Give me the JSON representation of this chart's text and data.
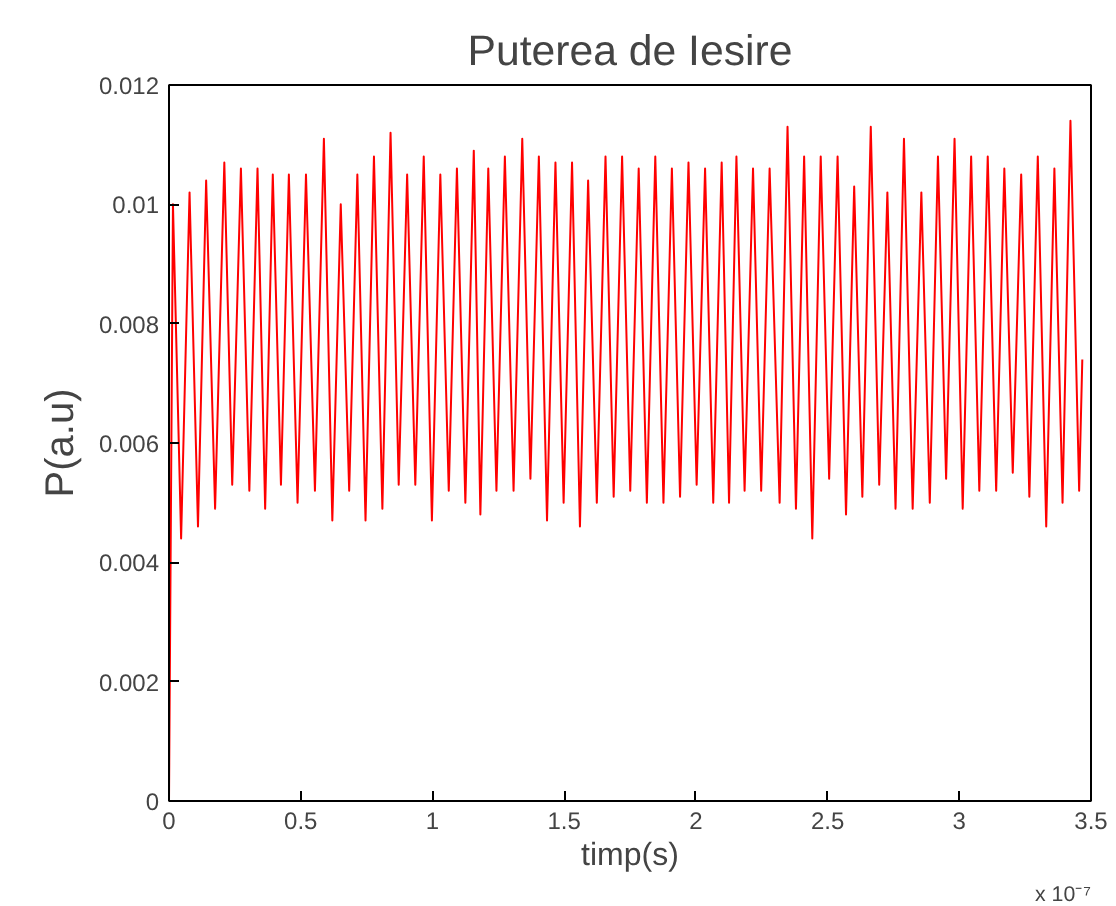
{
  "chart_data": {
    "type": "line",
    "title": "Puterea de Iesire",
    "xlabel": "timp(s)",
    "ylabel": "P(a.u)",
    "annotations": [
      "x 10⁻⁷"
    ],
    "xlim": [
      0,
      3.5
    ],
    "ylim": [
      0,
      0.012
    ],
    "xticks": [
      0,
      0.5,
      1,
      1.5,
      2,
      2.5,
      3,
      3.5
    ],
    "yticks": [
      0,
      0.002,
      0.004,
      0.006,
      0.008,
      0.01,
      0.012
    ],
    "grid": false,
    "marker": "none",
    "line_style": "solid",
    "series": [
      {
        "color": "#ff0000",
        "x": [
          0,
          0.015,
          0.046,
          0.078,
          0.11,
          0.141,
          0.175,
          0.21,
          0.24,
          0.273,
          0.305,
          0.336,
          0.365,
          0.394,
          0.425,
          0.455,
          0.488,
          0.52,
          0.554,
          0.588,
          0.62,
          0.652,
          0.684,
          0.715,
          0.746,
          0.778,
          0.81,
          0.841,
          0.872,
          0.904,
          0.935,
          0.967,
          0.998,
          1.03,
          1.062,
          1.093,
          1.125,
          1.157,
          1.182,
          1.212,
          1.243,
          1.275,
          1.308,
          1.341,
          1.372,
          1.404,
          1.435,
          1.467,
          1.498,
          1.53,
          1.56,
          1.591,
          1.624,
          1.657,
          1.688,
          1.72,
          1.751,
          1.783,
          1.814,
          1.846,
          1.877,
          1.909,
          1.94,
          1.972,
          2.003,
          2.035,
          2.066,
          2.098,
          2.126,
          2.154,
          2.185,
          2.217,
          2.248,
          2.28,
          2.318,
          2.348,
          2.38,
          2.411,
          2.442,
          2.474,
          2.506,
          2.538,
          2.57,
          2.601,
          2.632,
          2.664,
          2.696,
          2.727,
          2.758,
          2.79,
          2.823,
          2.856,
          2.888,
          2.919,
          2.95,
          2.982,
          3.013,
          3.045,
          3.076,
          3.108,
          3.14,
          3.171,
          3.203,
          3.235,
          3.266,
          3.298,
          3.33,
          3.361,
          3.392,
          3.422,
          3.455,
          3.467
        ],
        "values": [
          0,
          0.01,
          0.0044,
          0.0102,
          0.0046,
          0.0104,
          0.0049,
          0.0107,
          0.0053,
          0.0106,
          0.0052,
          0.0106,
          0.0049,
          0.0105,
          0.0053,
          0.0105,
          0.005,
          0.0105,
          0.0052,
          0.0111,
          0.0047,
          0.01,
          0.0052,
          0.0105,
          0.0047,
          0.0108,
          0.0049,
          0.0112,
          0.0053,
          0.0105,
          0.0053,
          0.0108,
          0.0047,
          0.0105,
          0.0052,
          0.0106,
          0.005,
          0.0109,
          0.0048,
          0.0106,
          0.0052,
          0.0108,
          0.0052,
          0.0111,
          0.0054,
          0.0108,
          0.0047,
          0.0107,
          0.005,
          0.0107,
          0.0046,
          0.0104,
          0.005,
          0.0108,
          0.0051,
          0.0108,
          0.0052,
          0.0106,
          0.005,
          0.0108,
          0.005,
          0.0106,
          0.0051,
          0.0107,
          0.0053,
          0.0106,
          0.005,
          0.0107,
          0.005,
          0.0108,
          0.0052,
          0.0106,
          0.0052,
          0.0106,
          0.005,
          0.0113,
          0.0049,
          0.0108,
          0.0044,
          0.0108,
          0.0054,
          0.0108,
          0.0048,
          0.0103,
          0.0051,
          0.0113,
          0.0053,
          0.0102,
          0.0049,
          0.0111,
          0.0049,
          0.0102,
          0.005,
          0.0108,
          0.0054,
          0.0111,
          0.0049,
          0.0108,
          0.0052,
          0.0108,
          0.0052,
          0.0106,
          0.0055,
          0.0105,
          0.0051,
          0.0108,
          0.0046,
          0.0106,
          0.005,
          0.0114,
          0.0052,
          0.0074
        ]
      }
    ]
  }
}
